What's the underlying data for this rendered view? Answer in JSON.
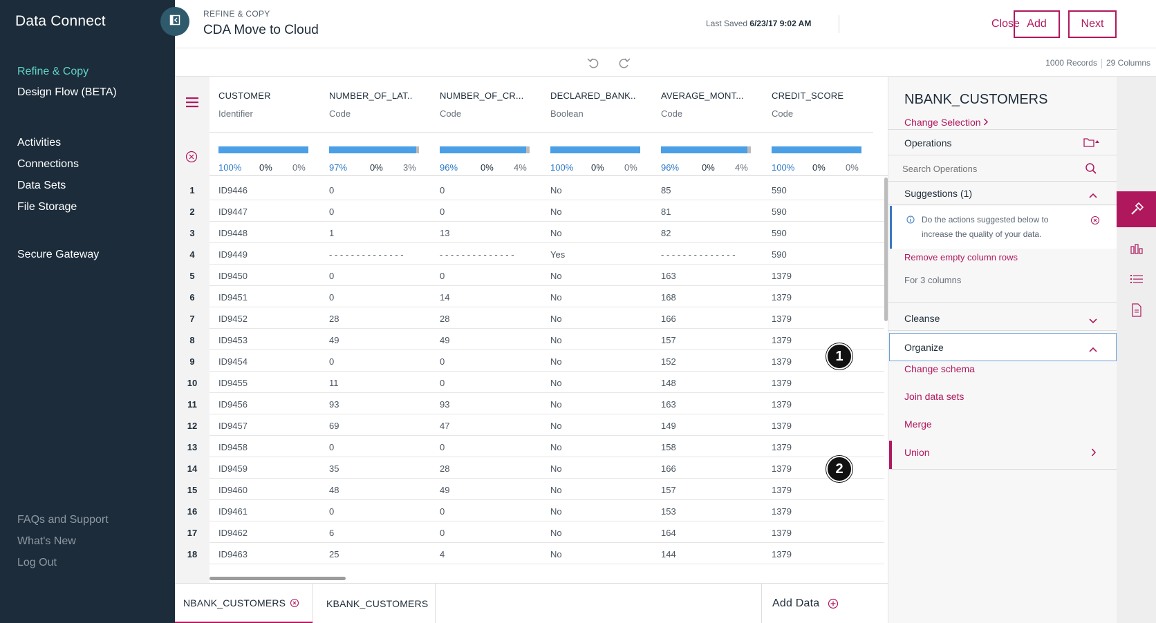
{
  "sidebar": {
    "app_name": "Data Connect",
    "nav_primary": [
      "Refine & Copy",
      "Design Flow (BETA)"
    ],
    "nav_main": [
      "Activities",
      "Connections",
      "Data Sets",
      "File Storage"
    ],
    "nav_gateway": "Secure Gateway",
    "nav_footer": [
      "FAQs and Support",
      "What's New",
      "Log Out"
    ]
  },
  "header": {
    "breadcrumb": "REFINE & COPY",
    "title": "CDA Move to Cloud",
    "last_saved_label": "Last Saved",
    "last_saved_value": "6/23/17 9:02 AM",
    "close_label": "Close",
    "add_label": "Add",
    "next_label": "Next"
  },
  "toolbar": {
    "records": "1000 Records",
    "columns": "29 Columns"
  },
  "grid": {
    "columns": [
      {
        "name": "CUSTOMER",
        "type": "Identifier",
        "valid": "100%",
        "invalid": "0%",
        "empty": "0%",
        "valid_fraction": 1.0,
        "empty_fraction": 0.0
      },
      {
        "name": "NUMBER_OF_LAT..",
        "type": "Code",
        "valid": "97%",
        "invalid": "0%",
        "empty": "3%",
        "valid_fraction": 0.97,
        "empty_fraction": 0.03
      },
      {
        "name": "NUMBER_OF_CR...",
        "type": "Code",
        "valid": "96%",
        "invalid": "0%",
        "empty": "4%",
        "valid_fraction": 0.96,
        "empty_fraction": 0.04
      },
      {
        "name": "DECLARED_BANK..",
        "type": "Boolean",
        "valid": "100%",
        "invalid": "0%",
        "empty": "0%",
        "valid_fraction": 1.0,
        "empty_fraction": 0.0
      },
      {
        "name": "AVERAGE_MONT...",
        "type": "Code",
        "valid": "96%",
        "invalid": "0%",
        "empty": "4%",
        "valid_fraction": 0.96,
        "empty_fraction": 0.04
      },
      {
        "name": "CREDIT_SCORE",
        "type": "Code",
        "valid": "100%",
        "invalid": "0%",
        "empty": "0%",
        "valid_fraction": 1.0,
        "empty_fraction": 0.0
      }
    ],
    "rows": [
      [
        "1",
        "ID9446",
        "0",
        "0",
        "No",
        "85",
        "590"
      ],
      [
        "2",
        "ID9447",
        "0",
        "0",
        "No",
        "81",
        "590"
      ],
      [
        "3",
        "ID9448",
        "1",
        "13",
        "No",
        "82",
        "590"
      ],
      [
        "4",
        "ID9449",
        "- - - - - - - - - - - - - -",
        "- - - - - - - - - - - - - -",
        "Yes",
        "- - - - - - - - - - - - - -",
        "590"
      ],
      [
        "5",
        "ID9450",
        "0",
        "0",
        "No",
        "163",
        "1379"
      ],
      [
        "6",
        "ID9451",
        "0",
        "14",
        "No",
        "168",
        "1379"
      ],
      [
        "7",
        "ID9452",
        "28",
        "28",
        "No",
        "166",
        "1379"
      ],
      [
        "8",
        "ID9453",
        "49",
        "49",
        "No",
        "157",
        "1379"
      ],
      [
        "9",
        "ID9454",
        "0",
        "0",
        "No",
        "152",
        "1379"
      ],
      [
        "10",
        "ID9455",
        "11",
        "0",
        "No",
        "148",
        "1379"
      ],
      [
        "11",
        "ID9456",
        "93",
        "93",
        "No",
        "163",
        "1379"
      ],
      [
        "12",
        "ID9457",
        "69",
        "47",
        "No",
        "149",
        "1379"
      ],
      [
        "13",
        "ID9458",
        "0",
        "0",
        "No",
        "158",
        "1379"
      ],
      [
        "14",
        "ID9459",
        "35",
        "28",
        "No",
        "166",
        "1379"
      ],
      [
        "15",
        "ID9460",
        "48",
        "49",
        "No",
        "157",
        "1379"
      ],
      [
        "16",
        "ID9461",
        "0",
        "0",
        "No",
        "153",
        "1379"
      ],
      [
        "17",
        "ID9462",
        "6",
        "0",
        "No",
        "164",
        "1379"
      ],
      [
        "18",
        "ID9463",
        "25",
        "4",
        "No",
        "144",
        "1379"
      ]
    ]
  },
  "callouts": [
    "1",
    "2"
  ],
  "tabs": {
    "items": [
      "NBANK_CUSTOMERS",
      "KBANK_CUSTOMERS"
    ],
    "add_data_label": "Add Data"
  },
  "panel": {
    "title": "NBANK_CUSTOMERS",
    "change_selection": "Change Selection",
    "operations_label": "Operations",
    "search_placeholder": "Search Operations",
    "suggestions_label": "Suggestions (1)",
    "hint_text": "Do the actions suggested below to increase the quality of your data.",
    "suggestion_action": "Remove empty column rows",
    "suggestion_scope": "For 3 columns",
    "cleanse_label": "Cleanse",
    "organize_label": "Organize",
    "organize_items": [
      "Change schema",
      "Join data sets",
      "Merge",
      "Union"
    ]
  },
  "rail": {
    "icons": [
      "hammer-icon",
      "chart-icon",
      "list-icon",
      "document-icon"
    ]
  },
  "colors": {
    "sidebar_bg": "#1c2c3a",
    "accent": "#b0185e",
    "active_nav": "#5fd3c8",
    "quality_blue": "#4a9fe6",
    "hint_border": "#3b78c2"
  }
}
